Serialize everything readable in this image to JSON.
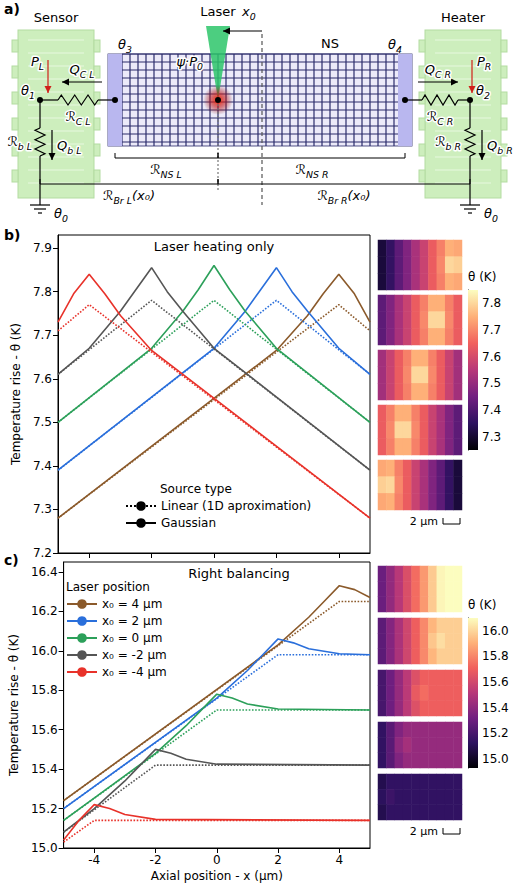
{
  "diagram": {
    "panel_label": "a)",
    "sensor": "Sensor",
    "laser": "Laser",
    "heater": "Heater",
    "nanostructure": "NS",
    "laser_offset": {
      "text": "x",
      "sub": "0"
    },
    "laser_power": {
      "text": "ψ·P",
      "sub": "0"
    },
    "power_left": {
      "text": "P",
      "sub": "L"
    },
    "power_right": {
      "text": "P",
      "sub": "R"
    },
    "flux_contact_left": {
      "text": "Q",
      "sub": "C L"
    },
    "flux_contact_right": {
      "text": "Q",
      "sub": "C R"
    },
    "flux_bath_left": {
      "text": "Q",
      "sub": "b L"
    },
    "flux_bath_right": {
      "text": "Q",
      "sub": "b R"
    },
    "theta_1": {
      "text": "θ",
      "sub": "1"
    },
    "theta_2": {
      "text": "θ",
      "sub": "2"
    },
    "theta_3": {
      "text": "θ",
      "sub": "3"
    },
    "theta_4": {
      "text": "θ",
      "sub": "4"
    },
    "theta_0": {
      "text": "θ",
      "sub": "0"
    },
    "r_contact_left": {
      "text": "ℛ",
      "sub": "C L"
    },
    "r_contact_right": {
      "text": "ℛ",
      "sub": "C R"
    },
    "r_ns_left": {
      "text": "ℛ",
      "sub": "NS L"
    },
    "r_ns_right": {
      "text": "ℛ",
      "sub": "NS R"
    },
    "r_branch_left": {
      "text": "ℛ",
      "sub": "Br L",
      "suffix": "(x₀)"
    },
    "r_branch_right": {
      "text": "ℛ",
      "sub": "Br R",
      "suffix": "(x₀)"
    },
    "r_bath_left": {
      "text": "ℛ",
      "sub": "b L"
    },
    "r_bath_right": {
      "text": "ℛ",
      "sub": "b R"
    }
  },
  "chart_data": [
    {
      "type": "line",
      "panel_label": "b)",
      "title": "Laser heating only",
      "ylabel": "Temperature rise - θ (K)",
      "xlim": [
        -5,
        5
      ],
      "xticks": [
        -4,
        -2,
        0,
        2,
        4
      ],
      "ylim": [
        7.2,
        7.93
      ],
      "yticks": [
        7.2,
        7.3,
        7.4,
        7.5,
        7.6,
        7.7,
        7.8,
        7.9
      ],
      "tick_labels": "y",
      "grid": false,
      "legend": "lower center",
      "legend_title": "Source type",
      "legend_entries": [
        {
          "name": "Linear (1D aproximation)",
          "line_style": "dotted",
          "color": "#000000"
        },
        {
          "name": "Gaussian",
          "line_style": "solid",
          "color": "#000000"
        }
      ],
      "series": [
        {
          "color": "#8b5a2b",
          "line_style": "solid",
          "x": [
            -5,
            2,
            3,
            3.5,
            4,
            4.5,
            5
          ],
          "values": [
            7.28,
            7.665,
            7.745,
            7.795,
            7.84,
            7.795,
            7.73
          ]
        },
        {
          "color": "#8b5a2b",
          "line_style": "dotted",
          "x": [
            -5,
            4,
            5
          ],
          "values": [
            7.28,
            7.77,
            7.71
          ]
        },
        {
          "color": "#2a6fdb",
          "line_style": "solid",
          "x": [
            -5,
            0,
            1,
            1.5,
            2,
            2.5,
            3,
            4,
            5
          ],
          "values": [
            7.39,
            7.67,
            7.755,
            7.805,
            7.855,
            7.8,
            7.755,
            7.67,
            7.61
          ]
        },
        {
          "color": "#2a6fdb",
          "line_style": "dotted",
          "x": [
            -5,
            2,
            5
          ],
          "values": [
            7.39,
            7.78,
            7.61
          ]
        },
        {
          "color": "#2ca05a",
          "line_style": "solid",
          "x": [
            -5,
            -2,
            -1,
            -0.5,
            0,
            0.5,
            1,
            2,
            5
          ],
          "values": [
            7.5,
            7.67,
            7.755,
            7.805,
            7.86,
            7.805,
            7.755,
            7.67,
            7.5
          ]
        },
        {
          "color": "#2ca05a",
          "line_style": "dotted",
          "x": [
            -5,
            0,
            5
          ],
          "values": [
            7.5,
            7.78,
            7.5
          ]
        },
        {
          "color": "#555555",
          "line_style": "solid",
          "x": [
            -5,
            -4,
            -3,
            -2.5,
            -2,
            -1.5,
            -1,
            0,
            5
          ],
          "values": [
            7.61,
            7.67,
            7.755,
            7.805,
            7.855,
            7.8,
            7.755,
            7.67,
            7.39
          ]
        },
        {
          "color": "#555555",
          "line_style": "dotted",
          "x": [
            -5,
            -2,
            5
          ],
          "values": [
            7.61,
            7.78,
            7.39
          ]
        },
        {
          "color": "#e8322a",
          "line_style": "solid",
          "x": [
            -5,
            -4.5,
            -4,
            -3.5,
            -3,
            -2,
            5
          ],
          "values": [
            7.73,
            7.795,
            7.84,
            7.795,
            7.745,
            7.665,
            7.28
          ]
        },
        {
          "color": "#e8322a",
          "line_style": "dotted",
          "x": [
            -5,
            -4,
            5
          ],
          "values": [
            7.71,
            7.77,
            7.28
          ]
        }
      ],
      "heatmaps": [
        {
          "cells": [
            [
              7.31,
              7.36,
              7.42,
              7.47,
              7.53,
              7.58,
              7.64,
              7.69,
              7.75,
              7.74
            ],
            [
              7.31,
              7.36,
              7.42,
              7.47,
              7.53,
              7.58,
              7.64,
              7.7,
              7.8,
              7.79
            ],
            [
              7.31,
              7.36,
              7.42,
              7.47,
              7.53,
              7.58,
              7.64,
              7.69,
              7.75,
              7.74
            ]
          ]
        },
        {
          "cells": [
            [
              7.42,
              7.47,
              7.53,
              7.58,
              7.64,
              7.69,
              7.75,
              7.75,
              7.69,
              7.64
            ],
            [
              7.42,
              7.47,
              7.53,
              7.58,
              7.64,
              7.7,
              7.8,
              7.8,
              7.7,
              7.64
            ],
            [
              7.42,
              7.47,
              7.53,
              7.58,
              7.64,
              7.69,
              7.75,
              7.75,
              7.69,
              7.64
            ]
          ]
        },
        {
          "cells": [
            [
              7.52,
              7.58,
              7.64,
              7.69,
              7.75,
              7.75,
              7.69,
              7.64,
              7.58,
              7.52
            ],
            [
              7.52,
              7.58,
              7.64,
              7.7,
              7.8,
              7.8,
              7.7,
              7.64,
              7.58,
              7.52
            ],
            [
              7.52,
              7.58,
              7.64,
              7.69,
              7.75,
              7.75,
              7.69,
              7.64,
              7.58,
              7.52
            ]
          ]
        },
        {
          "cells": [
            [
              7.64,
              7.69,
              7.75,
              7.75,
              7.69,
              7.64,
              7.58,
              7.53,
              7.47,
              7.42
            ],
            [
              7.64,
              7.7,
              7.8,
              7.8,
              7.7,
              7.64,
              7.58,
              7.53,
              7.47,
              7.42
            ],
            [
              7.64,
              7.69,
              7.75,
              7.75,
              7.69,
              7.64,
              7.58,
              7.53,
              7.47,
              7.42
            ]
          ]
        },
        {
          "cells": [
            [
              7.74,
              7.75,
              7.69,
              7.64,
              7.58,
              7.53,
              7.47,
              7.42,
              7.36,
              7.31
            ],
            [
              7.79,
              7.8,
              7.7,
              7.64,
              7.58,
              7.53,
              7.47,
              7.42,
              7.36,
              7.31
            ],
            [
              7.74,
              7.75,
              7.69,
              7.64,
              7.58,
              7.53,
              7.47,
              7.42,
              7.36,
              7.31
            ]
          ]
        }
      ],
      "colorbar": {
        "label": "θ (K)",
        "range": [
          7.25,
          7.85
        ],
        "ticks": [
          7.3,
          7.4,
          7.5,
          7.6,
          7.7,
          7.8
        ]
      },
      "scale_bar": "2 μm"
    },
    {
      "type": "line",
      "panel_label": "c)",
      "title": "Right balancing",
      "xlabel": "Axial position - x (μm)",
      "ylabel": "Temperature rise - θ (K)",
      "xlim": [
        -5,
        5
      ],
      "xticks": [
        -4,
        -2,
        0,
        2,
        4
      ],
      "ylim": [
        15,
        16.45
      ],
      "yticks": [
        {
          "value": 15,
          "label": "15.0"
        },
        15.2,
        15.4,
        15.6,
        15.8,
        {
          "value": 16,
          "label": "16.0"
        },
        16.2,
        16.4
      ],
      "grid": false,
      "legend": "upper left",
      "legend_title": "Laser position",
      "series": [
        {
          "name": "x₀ = 4 μm",
          "color": "#8b5a2b",
          "line_style": "solid",
          "x": [
            -5,
            2,
            3,
            3.5,
            4,
            4.5,
            5
          ],
          "values": [
            15.24,
            16.03,
            16.17,
            16.25,
            16.33,
            16.31,
            16.27
          ]
        },
        {
          "name": "x₀ = 4 μm",
          "color": "#8b5a2b",
          "line_style": "dotted",
          "x": [
            -5,
            4,
            5
          ],
          "values": [
            15.24,
            16.25,
            16.25
          ]
        },
        {
          "name": "x₀ = 2 μm",
          "color": "#2a6fdb",
          "line_style": "solid",
          "x": [
            -5,
            0,
            1,
            1.5,
            2,
            2.5,
            3,
            4,
            5
          ],
          "values": [
            15.2,
            15.76,
            15.9,
            15.98,
            16.06,
            16.04,
            16.01,
            15.985,
            15.98
          ]
        },
        {
          "name": "x₀ = 2 μm",
          "color": "#2a6fdb",
          "line_style": "dotted",
          "x": [
            -5,
            2,
            5
          ],
          "values": [
            15.2,
            15.98,
            15.98
          ]
        },
        {
          "name": "x₀ = 0 μm",
          "color": "#2ca05a",
          "line_style": "solid",
          "x": [
            -5,
            -2,
            -1,
            -0.5,
            0,
            0.5,
            1,
            2,
            5
          ],
          "values": [
            15.14,
            15.48,
            15.62,
            15.7,
            15.78,
            15.76,
            15.73,
            15.705,
            15.7
          ]
        },
        {
          "name": "x₀ = 0 μm",
          "color": "#2ca05a",
          "line_style": "dotted",
          "x": [
            -5,
            0,
            5
          ],
          "values": [
            15.14,
            15.7,
            15.7
          ]
        },
        {
          "name": "x₀ = -2 μm",
          "color": "#555555",
          "line_style": "solid",
          "x": [
            -5,
            -4,
            -3,
            -2.5,
            -2,
            -1.5,
            -1,
            0,
            5
          ],
          "values": [
            15.08,
            15.2,
            15.34,
            15.42,
            15.5,
            15.48,
            15.45,
            15.425,
            15.42
          ]
        },
        {
          "name": "x₀ = -2 μm",
          "color": "#555555",
          "line_style": "dotted",
          "x": [
            -5,
            -2,
            5
          ],
          "values": [
            15.08,
            15.42,
            15.42
          ]
        },
        {
          "name": "x₀ = -4 μm",
          "color": "#e8322a",
          "line_style": "solid",
          "x": [
            -5,
            -4.5,
            -4,
            -3.5,
            -3,
            -2,
            5
          ],
          "values": [
            15.04,
            15.14,
            15.22,
            15.2,
            15.17,
            15.145,
            15.14
          ]
        },
        {
          "name": "x₀ = -4 μm",
          "color": "#e8322a",
          "line_style": "dotted",
          "x": [
            -5,
            -4,
            5
          ],
          "values": [
            15.03,
            15.14,
            15.14
          ]
        }
      ],
      "heatmaps": [
        {
          "cells": [
            [
              15.3,
              15.41,
              15.52,
              15.63,
              15.74,
              15.85,
              15.97,
              16.08,
              16.19,
              16.25
            ],
            [
              15.3,
              15.41,
              15.52,
              15.63,
              15.74,
              15.85,
              15.97,
              16.08,
              16.24,
              16.28
            ],
            [
              15.3,
              15.41,
              15.52,
              15.63,
              15.74,
              15.85,
              15.97,
              16.08,
              16.19,
              16.25
            ]
          ]
        },
        {
          "cells": [
            [
              15.26,
              15.37,
              15.48,
              15.59,
              15.7,
              15.81,
              15.92,
              15.98,
              15.98,
              15.98
            ],
            [
              15.26,
              15.37,
              15.48,
              15.59,
              15.7,
              15.81,
              15.96,
              16.02,
              15.98,
              15.98
            ],
            [
              15.26,
              15.37,
              15.48,
              15.59,
              15.7,
              15.81,
              15.92,
              15.98,
              15.98,
              15.98
            ]
          ]
        },
        {
          "cells": [
            [
              15.2,
              15.31,
              15.42,
              15.53,
              15.64,
              15.7,
              15.7,
              15.7,
              15.7,
              15.7
            ],
            [
              15.2,
              15.31,
              15.42,
              15.53,
              15.68,
              15.74,
              15.7,
              15.7,
              15.7,
              15.7
            ],
            [
              15.2,
              15.31,
              15.42,
              15.53,
              15.64,
              15.7,
              15.7,
              15.7,
              15.7,
              15.7
            ]
          ]
        },
        {
          "cells": [
            [
              15.14,
              15.25,
              15.36,
              15.42,
              15.42,
              15.42,
              15.42,
              15.42,
              15.42,
              15.42
            ],
            [
              15.14,
              15.25,
              15.4,
              15.46,
              15.42,
              15.42,
              15.42,
              15.42,
              15.42,
              15.42
            ],
            [
              15.14,
              15.25,
              15.36,
              15.42,
              15.42,
              15.42,
              15.42,
              15.42,
              15.42,
              15.42
            ]
          ]
        },
        {
          "cells": [
            [
              15.09,
              15.14,
              15.14,
              15.14,
              15.14,
              15.14,
              15.14,
              15.14,
              15.14,
              15.14
            ],
            [
              15.12,
              15.17,
              15.14,
              15.14,
              15.14,
              15.14,
              15.14,
              15.14,
              15.14,
              15.14
            ],
            [
              15.09,
              15.14,
              15.14,
              15.14,
              15.14,
              15.14,
              15.14,
              15.14,
              15.14,
              15.14
            ]
          ]
        }
      ],
      "colorbar": {
        "label": "θ (K)",
        "range": [
          14.93,
          16.1
        ],
        "ticks": [
          {
            "value": 15,
            "label": "15.0"
          },
          15.2,
          15.4,
          15.6,
          15.8,
          {
            "value": 16,
            "label": "16.0"
          }
        ]
      },
      "scale_bar": "2 μm"
    }
  ]
}
